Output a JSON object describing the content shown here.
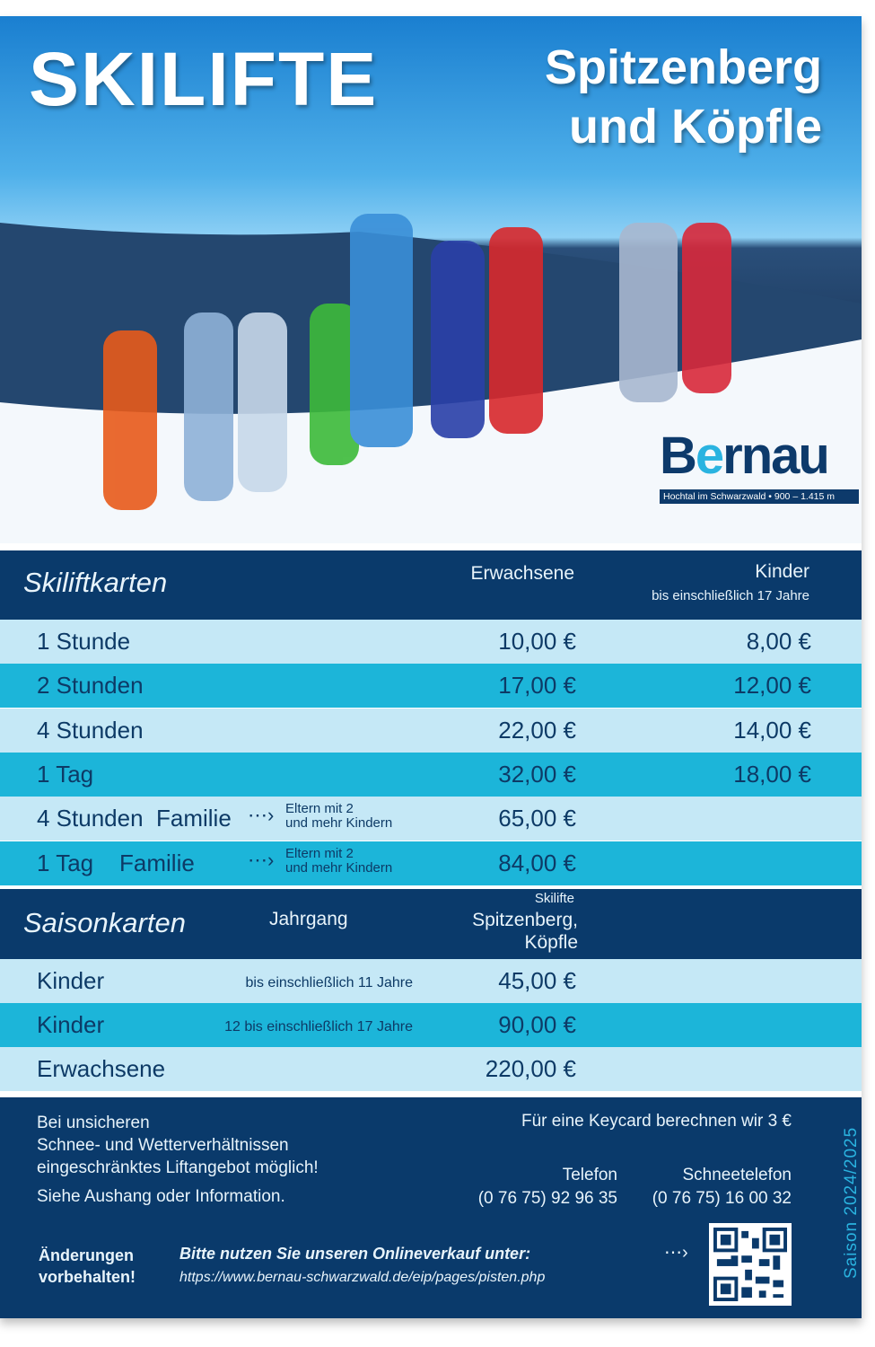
{
  "header": {
    "title": "SKILIFTE",
    "subtitle_line1": "Spitzenberg",
    "subtitle_line2": "und Köpfle"
  },
  "logo": {
    "name": "Bernau",
    "tagline": "Hochtal im Schwarzwald • 900 – 1.415 m"
  },
  "colors": {
    "navy": "#0a3a6b",
    "light_row": "#c5e8f6",
    "mid_row": "#1cb5d9",
    "accent": "#2ab3e0"
  },
  "skiliftkarten": {
    "title": "Skiliftkarten",
    "col_adults": "Erwachsene",
    "col_kids": "Kinder",
    "col_kids_note": "bis einschließlich 17 Jahre",
    "rows": [
      {
        "label": "1 Stunde",
        "adult": "10,00 €",
        "kids": "8,00 €"
      },
      {
        "label": "2 Stunden",
        "adult": "17,00 €",
        "kids": "12,00 €"
      },
      {
        "label": "4 Stunden",
        "adult": "22,00 €",
        "kids": "14,00 €"
      },
      {
        "label": "1 Tag",
        "adult": "32,00 €",
        "kids": "18,00 €"
      },
      {
        "label": "4 Stunden  Familie",
        "note1": "Eltern mit 2",
        "note2": "und mehr Kindern",
        "adult": "65,00 €"
      },
      {
        "label": "1 Tag    Familie",
        "note1": "Eltern mit 2",
        "note2": "und mehr Kindern",
        "adult": "84,00 €"
      }
    ]
  },
  "saisonkarten": {
    "title": "Saisonkarten",
    "col_year": "Jahrgang",
    "col_small": "Skilifte",
    "col_main1": "Spitzenberg,",
    "col_main2": "Köpfle",
    "rows": [
      {
        "label": "Kinder",
        "age": "bis einschließlich 11 Jahre",
        "price": "45,00 €"
      },
      {
        "label": "Kinder",
        "age": "12 bis einschließlich 17 Jahre",
        "price": "90,00 €"
      },
      {
        "label": "Erwachsene",
        "price": "220,00 €"
      }
    ]
  },
  "footer": {
    "warn1": "Bei unsicheren",
    "warn2": "Schnee- und Wetterverhältnissen",
    "warn3": "eingeschränktes Liftangebot möglich!",
    "info": "Siehe Aushang oder Information.",
    "keycard": "Für eine Keycard berechnen wir 3 €",
    "phone_label": "Telefon",
    "phone": "(0 76 75) 92 96 35",
    "snow_label": "Schneetelefon",
    "snow_phone": "(0 76 75) 16 00 32",
    "changes1": "Änderungen",
    "changes2": "vorbehalten!",
    "online": "Bitte nutzen Sie unseren Onlineverkauf unter:",
    "url": "https://www.bernau-schwarzwald.de/eip/pages/pisten.php",
    "season": "Saison 2024/2025"
  }
}
